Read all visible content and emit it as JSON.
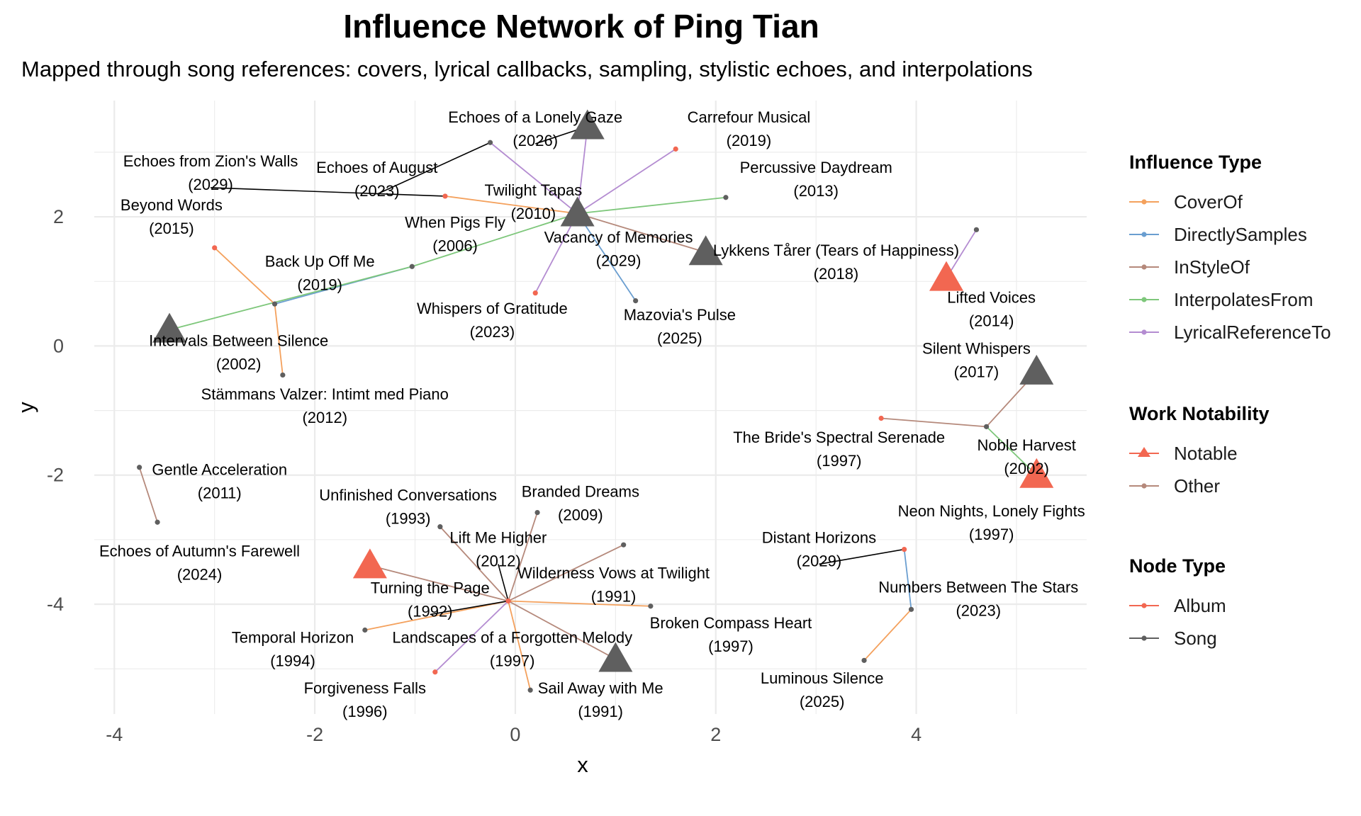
{
  "chart_data": {
    "type": "network",
    "title": "Influence Network of Ping Tian",
    "subtitle": "Mapped through song references: covers, lyrical callbacks, sampling, stylistic echoes, and interpolations",
    "xlabel": "x",
    "ylabel": "y",
    "xlim": [
      -4.2,
      5.7
    ],
    "ylim": [
      -5.7,
      3.8
    ],
    "xticks": [
      -4,
      -2,
      0,
      2,
      4
    ],
    "xtick_labels": [
      "-4",
      "-2",
      "0",
      "2",
      "4"
    ],
    "yticks": [
      -4,
      -2,
      0,
      2
    ],
    "ytick_labels": [
      "-4",
      "-2",
      "0",
      "2"
    ],
    "grid": true,
    "legend_position": "right",
    "colors": {
      "CoverOf": "#f4a15d",
      "DirectlySamples": "#6a9ed0",
      "InStyleOf": "#b5897b",
      "InterpolatesFrom": "#7ec77b",
      "LyricalReferenceTo": "#b48cd1",
      "Notable": "#f26751",
      "Album": "#f26751",
      "Song": "#5f5f5f",
      "Unknown": "#000000"
    },
    "legends": [
      {
        "title": "Influence Type",
        "items": [
          {
            "label": "CoverOf",
            "color": "#f4a15d"
          },
          {
            "label": "DirectlySamples",
            "color": "#6a9ed0"
          },
          {
            "label": "InStyleOf",
            "color": "#b5897b"
          },
          {
            "label": "InterpolatesFrom",
            "color": "#7ec77b"
          },
          {
            "label": "LyricalReferenceTo",
            "color": "#b48cd1"
          }
        ]
      },
      {
        "title": "Work Notability",
        "items": [
          {
            "label": "Notable",
            "color": "#f26751",
            "shape": "triangle"
          },
          {
            "label": "Other",
            "color": "#b5897b",
            "shape": "dot"
          }
        ]
      },
      {
        "title": "Node Type",
        "items": [
          {
            "label": "Album",
            "color": "#f26751",
            "shape": "dot"
          },
          {
            "label": "Song",
            "color": "#5f5f5f",
            "shape": "dot"
          }
        ]
      }
    ],
    "nodes": [
      {
        "id": "hub1",
        "x": 0.62,
        "y": 2.05,
        "type": "Song",
        "notable": true
      },
      {
        "id": "gaze",
        "x": 0.72,
        "y": 3.4,
        "type": "Song",
        "notable": true
      },
      {
        "id": "lykkens",
        "x": 1.9,
        "y": 1.45,
        "type": "Song",
        "notable": true
      },
      {
        "id": "intervals",
        "x": -3.45,
        "y": 0.25,
        "type": "Song",
        "notable": true
      },
      {
        "id": "lifted",
        "x": 4.3,
        "y": 1.05,
        "type": "Album",
        "notable": true
      },
      {
        "id": "silent",
        "x": 5.2,
        "y": -0.4,
        "type": "Song",
        "notable": true
      },
      {
        "id": "noblenotable",
        "x": 5.2,
        "y": -2.0,
        "type": "Album",
        "notable": true
      },
      {
        "id": "turning",
        "x": -1.45,
        "y": -3.4,
        "type": "Album",
        "notable": true
      },
      {
        "id": "landscapes",
        "x": 1.0,
        "y": -4.85,
        "type": "Song",
        "notable": true
      },
      {
        "id": "echoeslonely",
        "x": -0.25,
        "y": 3.15,
        "type": "Song",
        "notable": false
      },
      {
        "id": "carrefour",
        "x": 1.6,
        "y": 3.05,
        "type": "Album",
        "notable": false
      },
      {
        "id": "august",
        "x": -0.7,
        "y": 2.32,
        "type": "Album",
        "notable": false
      },
      {
        "id": "percussive",
        "x": 2.1,
        "y": 2.3,
        "type": "Song",
        "notable": false
      },
      {
        "id": "whenpigs",
        "x": -1.03,
        "y": 1.23,
        "type": "Song",
        "notable": false
      },
      {
        "id": "backup",
        "x": -2.4,
        "y": 0.65,
        "type": "Song",
        "notable": false
      },
      {
        "id": "beyond",
        "x": -3.0,
        "y": 1.52,
        "type": "Album",
        "notable": false
      },
      {
        "id": "stammans",
        "x": -2.32,
        "y": -0.45,
        "type": "Song",
        "notable": false
      },
      {
        "id": "whispers",
        "x": 0.2,
        "y": 0.82,
        "type": "Album",
        "notable": false
      },
      {
        "id": "mazovia",
        "x": 1.2,
        "y": 0.7,
        "type": "Song",
        "notable": false
      },
      {
        "id": "liftedsrc",
        "x": 4.6,
        "y": 1.8,
        "type": "Song",
        "notable": false
      },
      {
        "id": "noble",
        "x": 4.7,
        "y": -1.25,
        "type": "Song",
        "notable": false
      },
      {
        "id": "bride",
        "x": 3.65,
        "y": -1.12,
        "type": "Album",
        "notable": false
      },
      {
        "id": "gentle",
        "x": -3.75,
        "y": -1.88,
        "type": "Song",
        "notable": false
      },
      {
        "id": "autumn",
        "x": -3.57,
        "y": -2.73,
        "type": "Song",
        "notable": false
      },
      {
        "id": "hub2",
        "x": -0.07,
        "y": -3.95,
        "type": "Album",
        "notable": false
      },
      {
        "id": "unfinished",
        "x": -0.75,
        "y": -2.8,
        "type": "Song",
        "notable": false
      },
      {
        "id": "branded",
        "x": 0.22,
        "y": -2.58,
        "type": "Song",
        "notable": false
      },
      {
        "id": "wilderness",
        "x": 1.08,
        "y": -3.08,
        "type": "Song",
        "notable": false
      },
      {
        "id": "broken",
        "x": 1.35,
        "y": -4.03,
        "type": "Song",
        "notable": false
      },
      {
        "id": "temporal",
        "x": -1.5,
        "y": -4.4,
        "type": "Song",
        "notable": false
      },
      {
        "id": "forgiveness",
        "x": -0.8,
        "y": -5.05,
        "type": "Album",
        "notable": false
      },
      {
        "id": "sailaway",
        "x": 0.15,
        "y": -5.33,
        "type": "Song",
        "notable": false
      },
      {
        "id": "distant",
        "x": 3.88,
        "y": -3.15,
        "type": "Album",
        "notable": false
      },
      {
        "id": "numbers",
        "x": 3.95,
        "y": -4.08,
        "type": "Song",
        "notable": false
      },
      {
        "id": "luminous",
        "x": 3.48,
        "y": -4.87,
        "type": "Song",
        "notable": false
      }
    ],
    "edges": [
      {
        "from": "hub1",
        "to": "echoeslonely",
        "type": "LyricalReferenceTo"
      },
      {
        "from": "hub1",
        "to": "gaze",
        "type": "LyricalReferenceTo"
      },
      {
        "from": "hub1",
        "to": "carrefour",
        "type": "LyricalReferenceTo"
      },
      {
        "from": "hub1",
        "to": "august",
        "type": "CoverOf"
      },
      {
        "from": "hub1",
        "to": "percussive",
        "type": "InterpolatesFrom"
      },
      {
        "from": "hub1",
        "to": "whenpigs",
        "type": "InterpolatesFrom"
      },
      {
        "from": "hub1",
        "to": "whispers",
        "type": "LyricalReferenceTo"
      },
      {
        "from": "hub1",
        "to": "mazovia",
        "type": "DirectlySamples"
      },
      {
        "from": "hub1",
        "to": "lykkens",
        "type": "InStyleOf"
      },
      {
        "from": "whenpigs",
        "to": "backup",
        "type": "DirectlySamples"
      },
      {
        "from": "whenpigs",
        "to": "intervals",
        "type": "InterpolatesFrom"
      },
      {
        "from": "backup",
        "to": "beyond",
        "type": "CoverOf"
      },
      {
        "from": "backup",
        "to": "stammans",
        "type": "CoverOf"
      },
      {
        "from": "lifted",
        "to": "liftedsrc",
        "type": "LyricalReferenceTo"
      },
      {
        "from": "noble",
        "to": "silent",
        "type": "InStyleOf"
      },
      {
        "from": "noble",
        "to": "bride",
        "type": "InStyleOf"
      },
      {
        "from": "noble",
        "to": "noblenotable",
        "type": "InterpolatesFrom"
      },
      {
        "from": "gentle",
        "to": "autumn",
        "type": "InStyleOf"
      },
      {
        "from": "hub2",
        "to": "unfinished",
        "type": "InStyleOf"
      },
      {
        "from": "hub2",
        "to": "branded",
        "type": "InStyleOf"
      },
      {
        "from": "hub2",
        "to": "wilderness",
        "type": "InStyleOf"
      },
      {
        "from": "hub2",
        "to": "broken",
        "type": "CoverOf"
      },
      {
        "from": "hub2",
        "to": "temporal",
        "type": "CoverOf"
      },
      {
        "from": "hub2",
        "to": "turning",
        "type": "InStyleOf"
      },
      {
        "from": "hub2",
        "to": "forgiveness",
        "type": "LyricalReferenceTo"
      },
      {
        "from": "hub2",
        "to": "sailaway",
        "type": "CoverOf"
      },
      {
        "from": "hub2",
        "to": "landscapes",
        "type": "InStyleOf"
      },
      {
        "from": "distant",
        "to": "numbers",
        "type": "DirectlySamples"
      },
      {
        "from": "numbers",
        "to": "luminous",
        "type": "CoverOf"
      }
    ],
    "labels": [
      {
        "name": "Echoes of a Lonely Gaze",
        "year": "(2026)",
        "x": 0.2,
        "y": 3.46,
        "anchor": "gaze"
      },
      {
        "name": "Carrefour Musical",
        "year": "(2019)",
        "x": 2.33,
        "y": 3.46
      },
      {
        "name": "Echoes from Zion's Walls",
        "year": "(2029)",
        "x": -3.04,
        "y": 2.78,
        "anchor": "august"
      },
      {
        "name": "Echoes of August",
        "year": "(2023)",
        "x": -1.38,
        "y": 2.68,
        "anchor": "echoeslonely"
      },
      {
        "name": "Twilight Tapas",
        "year": "(2010)",
        "x": 0.18,
        "y": 2.33
      },
      {
        "name": "Percussive Daydream",
        "year": "(2013)",
        "x": 3.0,
        "y": 2.68
      },
      {
        "name": "Beyond Words",
        "year": "(2015)",
        "x": -3.43,
        "y": 2.1
      },
      {
        "name": "When Pigs Fly",
        "year": "(2006)",
        "x": -0.6,
        "y": 1.83
      },
      {
        "name": "Vacancy of Memories",
        "year": "(2029)",
        "x": 1.03,
        "y": 1.6
      },
      {
        "name": "Lykkens Tårer (Tears of Happiness)",
        "year": "(2018)",
        "x": 3.2,
        "y": 1.4
      },
      {
        "name": "Back Up Off Me",
        "year": "(2019)",
        "x": -1.95,
        "y": 1.23
      },
      {
        "name": "Whispers of Gratitude",
        "year": "(2023)",
        "x": -0.23,
        "y": 0.5
      },
      {
        "name": "Lifted Voices",
        "year": "(2014)",
        "x": 4.75,
        "y": 0.67
      },
      {
        "name": "Mazovia's Pulse",
        "year": "(2025)",
        "x": 1.64,
        "y": 0.4
      },
      {
        "name": "Intervals Between Silence",
        "year": "(2002)",
        "x": -2.76,
        "y": 0.0
      },
      {
        "name": "Silent Whispers",
        "year": "(2017)",
        "x": 4.6,
        "y": -0.12
      },
      {
        "name": "Stämmans Valzer: Intimt med Piano",
        "year": "(2012)",
        "x": -1.9,
        "y": -0.83
      },
      {
        "name": "The Bride's Spectral Serenade",
        "year": "(1997)",
        "x": 3.23,
        "y": -1.5
      },
      {
        "name": "Noble Harvest",
        "year": "(2002)",
        "x": 5.1,
        "y": -1.62
      },
      {
        "name": "Gentle Acceleration",
        "year": "(2011)",
        "x": -2.95,
        "y": -2.0
      },
      {
        "name": "Unfinished Conversations",
        "year": "(1993)",
        "x": -1.07,
        "y": -2.39
      },
      {
        "name": "Branded Dreams",
        "year": "(2009)",
        "x": 0.65,
        "y": -2.34
      },
      {
        "name": "Neon Nights, Lonely Fights",
        "year": "(1997)",
        "x": 4.75,
        "y": -2.64
      },
      {
        "name": "Echoes of Autumn's Farewell",
        "year": "(2024)",
        "x": -3.15,
        "y": -3.26
      },
      {
        "name": "Lift Me Higher",
        "year": "(2012)",
        "x": -0.17,
        "y": -3.05,
        "anchor": "hub2"
      },
      {
        "name": "Distant Horizons",
        "year": "(2029)",
        "x": 3.03,
        "y": -3.05,
        "anchor": "distant"
      },
      {
        "name": "Turning the Page",
        "year": "(1992)",
        "x": -0.85,
        "y": -3.83,
        "anchor": "hub2"
      },
      {
        "name": "Wilderness Vows at Twilight",
        "year": "(1991)",
        "x": 0.98,
        "y": -3.6
      },
      {
        "name": "Numbers Between The Stars",
        "year": "(2023)",
        "x": 4.62,
        "y": -3.82
      },
      {
        "name": "Temporal Horizon",
        "year": "(1994)",
        "x": -2.22,
        "y": -4.6
      },
      {
        "name": "Landscapes of a Forgotten Melody",
        "year": "(1997)",
        "x": -0.03,
        "y": -4.6
      },
      {
        "name": "Broken Compass Heart",
        "year": "(1997)",
        "x": 2.15,
        "y": -4.37
      },
      {
        "name": "Forgiveness Falls",
        "year": "(1996)",
        "x": -1.5,
        "y": -5.38
      },
      {
        "name": "Sail Away with Me",
        "year": "(1991)",
        "x": 0.85,
        "y": -5.38
      },
      {
        "name": "Luminous Silence",
        "year": "(2025)",
        "x": 3.06,
        "y": -5.23
      }
    ]
  }
}
